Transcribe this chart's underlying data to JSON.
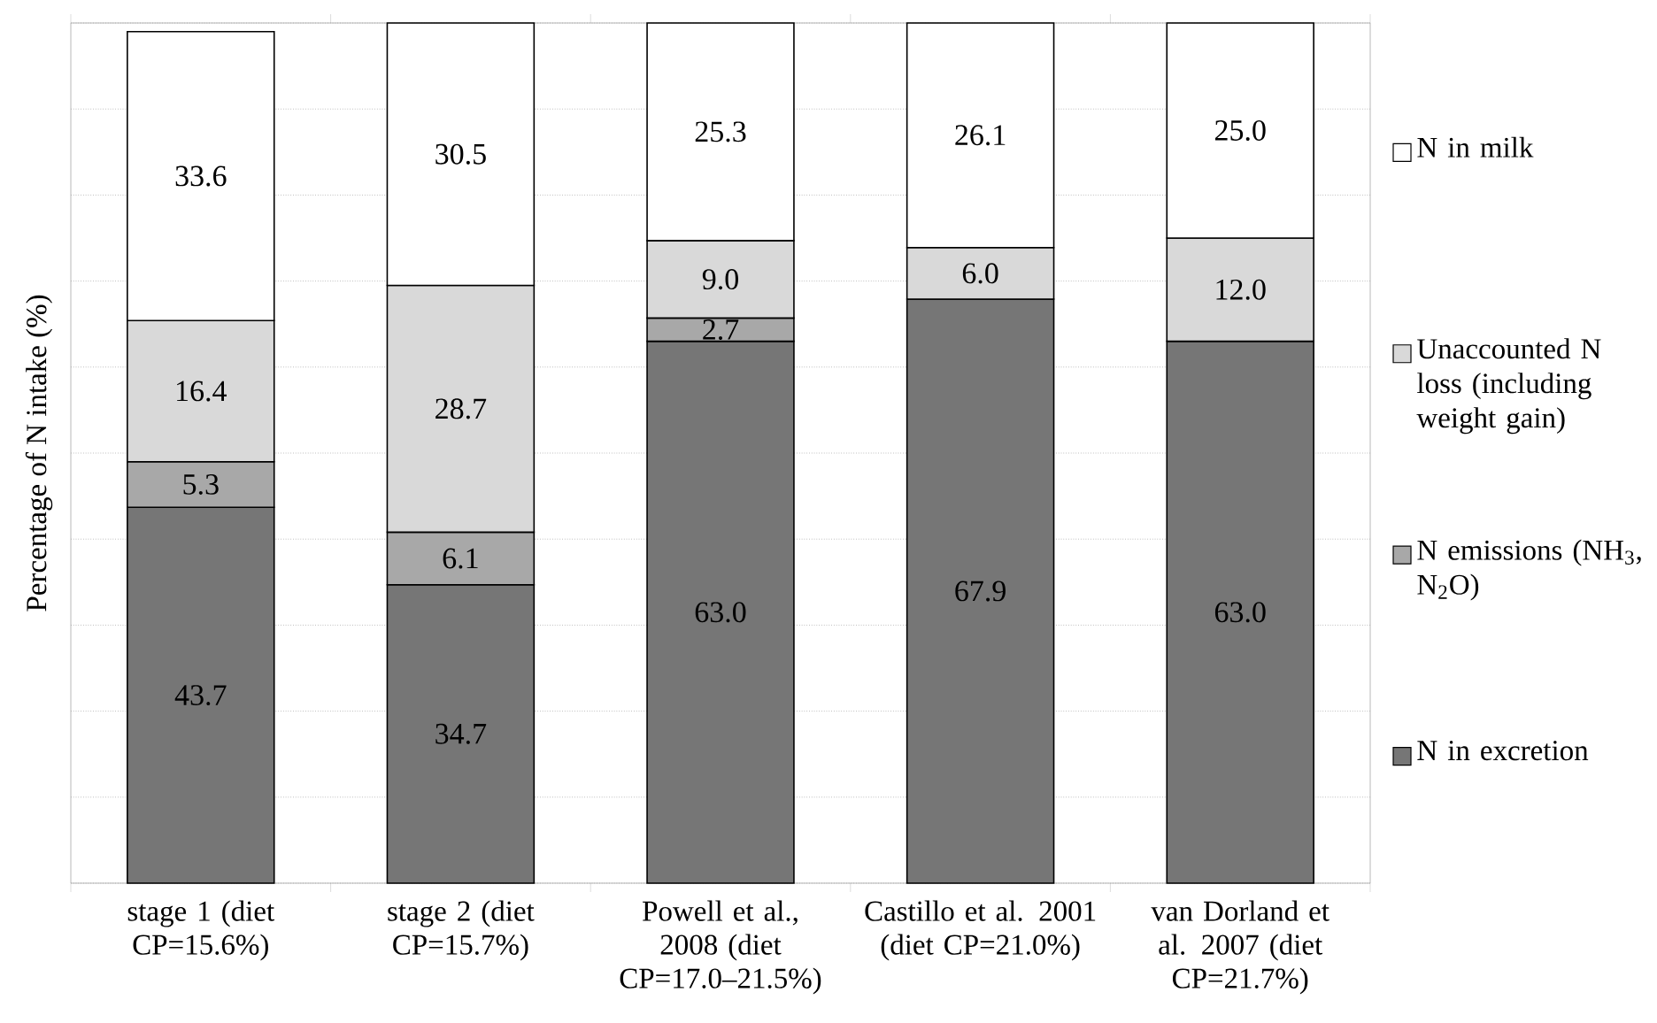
{
  "chart_data": {
    "type": "bar",
    "stacked": true,
    "ylabel": "Percentage of N intake (%)",
    "categories": [
      "stage 1 (diet CP=15.6%)",
      "stage 2 (diet CP=15.7%)",
      "Powell et al., 2008 (diet CP=17.0–21.5%)",
      "Castillo et al. 2001 (diet CP=21.0%)",
      "van Dorland et al. 2007 (diet CP=21.7%)"
    ],
    "series": [
      {
        "name": "N in excretion",
        "color": "#767676",
        "values": [
          43.7,
          34.7,
          63.0,
          67.9,
          63.0
        ],
        "value_labels": [
          "43.7",
          "34.7",
          "63.0",
          "67.9",
          "63.0"
        ]
      },
      {
        "name": "N emissions (NH$_{3}$, N$_{2}$O)",
        "color": "#a8a8a8",
        "values": [
          5.3,
          6.1,
          2.7,
          null,
          null
        ],
        "value_labels": [
          "5.3",
          "6.1",
          "2.7",
          null,
          null
        ]
      },
      {
        "name": "Unaccounted N loss (including weight gain)",
        "color": "#d9d9d9",
        "values": [
          16.4,
          28.7,
          9.0,
          6.0,
          12.0
        ],
        "value_labels": [
          "16.4",
          "28.7",
          "9.0",
          "6.0",
          "12.0"
        ]
      },
      {
        "name": "N in milk",
        "color": "#ffffff",
        "values": [
          33.6,
          30.5,
          25.3,
          26.1,
          25.0
        ],
        "value_labels": [
          "33.6",
          "30.5",
          "25.3",
          "26.1",
          "25.0"
        ]
      }
    ],
    "ylim": [
      0,
      100
    ],
    "yticks": [
      {
        "value": 0,
        "label": null
      },
      {
        "value": 10,
        "label": null
      },
      {
        "value": 20,
        "label": null
      },
      {
        "value": 30,
        "label": null
      },
      {
        "value": 40,
        "label": null
      },
      {
        "value": 50,
        "label": null
      },
      {
        "value": 60,
        "label": null
      },
      {
        "value": 70,
        "label": null
      },
      {
        "value": 80,
        "label": null
      },
      {
        "value": 90,
        "label": null
      },
      {
        "value": 100,
        "label": null
      }
    ],
    "tick_labels": "x",
    "grid": "y",
    "legend": "right"
  }
}
